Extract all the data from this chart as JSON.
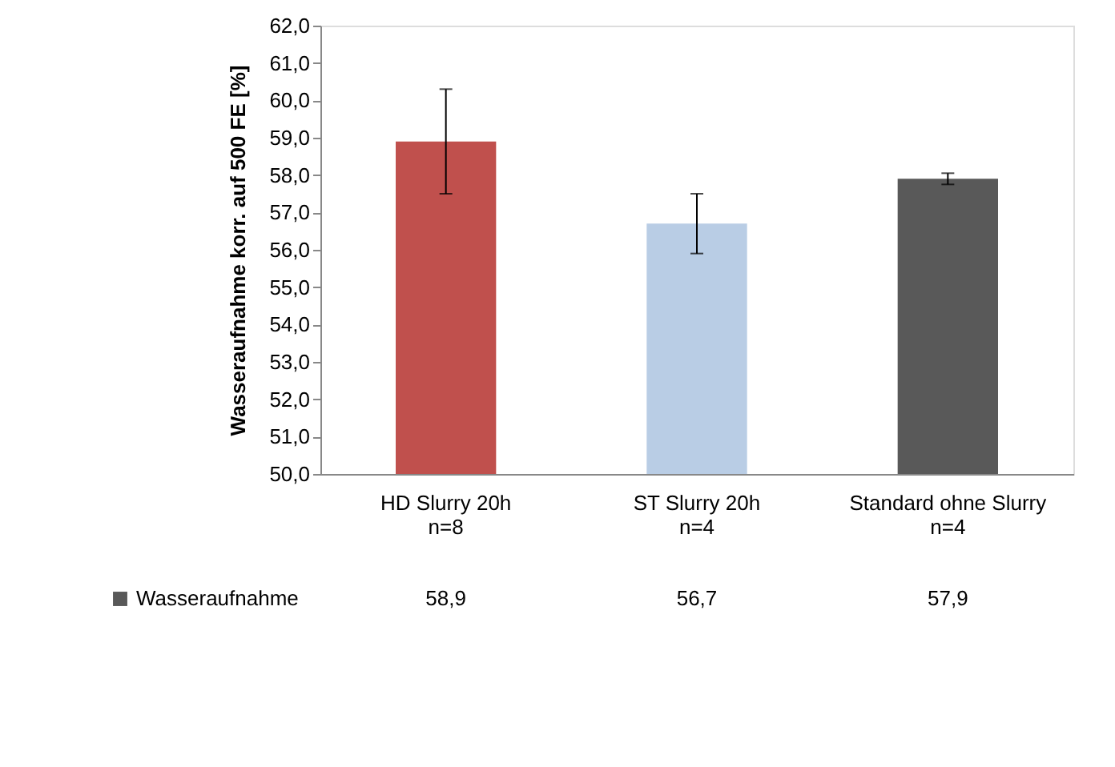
{
  "chart_data": {
    "type": "bar",
    "ylabel": "Wasseraufnahme korr. auf 500 FE [%]",
    "categories": [
      "HD Slurry 20h\nn=8",
      "ST Slurry 20h\nn=4",
      "Standard ohne Slurry\nn=4"
    ],
    "series": [
      {
        "name": "Wasseraufnahme",
        "color": "#595959",
        "colors": [
          "#c0504d",
          "#b9cde5",
          "#595959"
        ],
        "values": [
          58.9,
          56.7,
          57.9
        ],
        "errors": [
          1.4,
          0.8,
          0.15
        ]
      }
    ],
    "ylim": [
      50,
      62
    ],
    "yticks": [
      {
        "value": 50,
        "label": "50,0"
      },
      {
        "value": 51,
        "label": "51,0"
      },
      {
        "value": 52,
        "label": "52,0"
      },
      {
        "value": 53,
        "label": "53,0"
      },
      {
        "value": 54,
        "label": "54,0"
      },
      {
        "value": 55,
        "label": "55,0"
      },
      {
        "value": 56,
        "label": "56,0"
      },
      {
        "value": 57,
        "label": "57,0"
      },
      {
        "value": 58,
        "label": "58,0"
      },
      {
        "value": 59,
        "label": "59,0"
      },
      {
        "value": 60,
        "label": "60,0"
      },
      {
        "value": 61,
        "label": "61,0"
      },
      {
        "value": 62,
        "label": "62,0"
      }
    ],
    "value_labels": [
      "58,9",
      "56,7",
      "57,9"
    ],
    "grid": false,
    "legend": "bottom left"
  }
}
